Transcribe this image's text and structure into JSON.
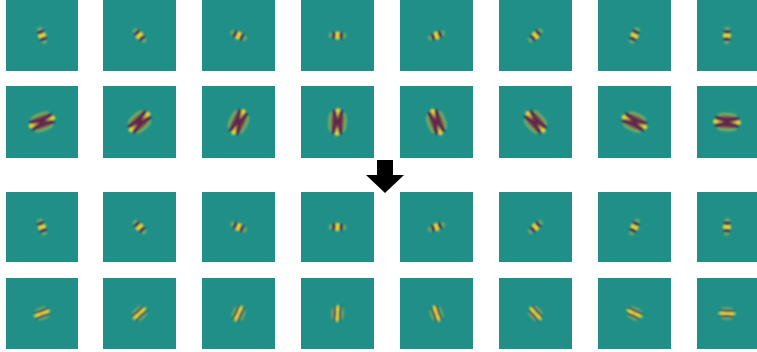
{
  "colors": {
    "background": "#1f8f87",
    "positive_lobe": "#fde725",
    "negative_lobe": "#440154",
    "arrow": "#000000"
  },
  "figure": {
    "orientations_deg": [
      0,
      22.5,
      45,
      67.5,
      90,
      112.5,
      135,
      157.5
    ],
    "groups": [
      {
        "name": "top",
        "rows": [
          {
            "scale": "small",
            "elongation": "low"
          },
          {
            "scale": "large",
            "elongation": "high"
          }
        ]
      },
      {
        "name": "bottom",
        "rows": [
          {
            "scale": "small",
            "elongation": "low"
          },
          {
            "scale": "small",
            "elongation": "high"
          }
        ]
      }
    ],
    "arrow": {
      "direction": "down",
      "icon": "down-arrow-icon"
    }
  }
}
